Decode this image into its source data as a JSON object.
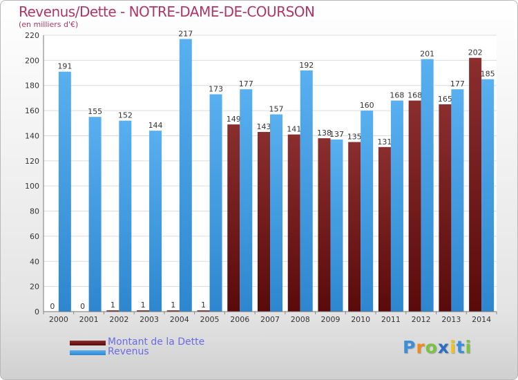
{
  "chart_data": {
    "type": "bar",
    "title": "Revenus/Dette - NOTRE-DAME-DE-COURSON",
    "subtitle": "(en milliers d'€)",
    "categories": [
      "2000",
      "2001",
      "2002",
      "2003",
      "2004",
      "2005",
      "2006",
      "2007",
      "2008",
      "2009",
      "2010",
      "2011",
      "2012",
      "2013",
      "2014"
    ],
    "series": [
      {
        "name": "Montant de la Dette",
        "color": "#7a1a1a",
        "values": [
          0,
          0,
          1,
          1,
          1,
          1,
          149,
          143,
          141,
          138,
          135,
          131,
          168,
          165,
          202
        ]
      },
      {
        "name": "Revenus",
        "color": "#4aa3e8",
        "values": [
          191,
          155,
          152,
          144,
          217,
          173,
          177,
          157,
          192,
          137,
          160,
          168,
          201,
          177,
          185
        ]
      }
    ],
    "ylim": [
      0,
      220
    ],
    "yticks": [
      0,
      20,
      40,
      60,
      80,
      100,
      120,
      140,
      160,
      180,
      200,
      220
    ],
    "grid": true,
    "legend_position": "bottom-left"
  },
  "logo": {
    "letters": [
      "P",
      "r",
      "o",
      "x",
      "i",
      "t",
      "i"
    ],
    "colors": [
      "#3a8fd8",
      "#f08a1c",
      "#7cc242",
      "#2b6cc4",
      "#f0c419",
      "#3a8fd8",
      "#7cc242"
    ]
  }
}
